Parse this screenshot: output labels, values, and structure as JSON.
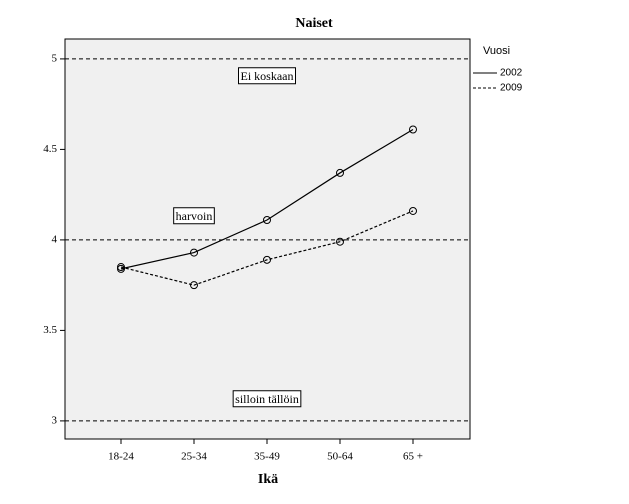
{
  "chart_data": {
    "type": "line",
    "title": "Naiset",
    "x_label": "Ikä",
    "categories": [
      "18-24",
      "25-34",
      "35-49",
      "50-64",
      "65 +"
    ],
    "series": [
      {
        "name": "2002",
        "color": "#000000",
        "style": "solid",
        "values": [
          3.84,
          3.93,
          4.11,
          4.37,
          4.61
        ]
      },
      {
        "name": "2009",
        "color": "#000000",
        "style": "dashed",
        "values": [
          3.85,
          3.75,
          3.89,
          3.99,
          4.16
        ]
      }
    ],
    "legend_title": "Vuosi",
    "legend": "right",
    "ylim": [
      2.9,
      5.11
    ],
    "yticks": [
      3,
      3.5,
      4,
      4.5,
      5
    ],
    "reference_lines": [
      3,
      4,
      5
    ],
    "annotations": [
      "Ei koskaan",
      "harvoin",
      "silloin tällöin"
    ]
  }
}
